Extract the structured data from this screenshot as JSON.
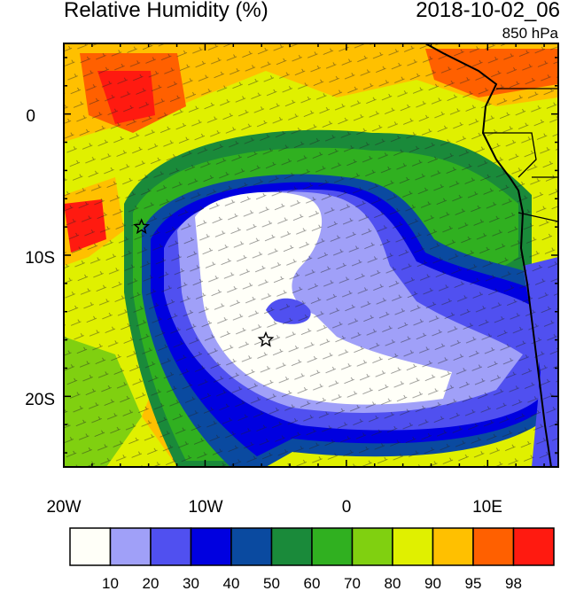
{
  "title": "Relative Humidity (%)",
  "datetime": "2018-10-02_06",
  "level": "850 hPa",
  "x_ticks": [
    "20W",
    "10W",
    "0",
    "10E"
  ],
  "y_ticks": [
    "0",
    "10S",
    "20S"
  ],
  "colorbar": {
    "labels": [
      "10",
      "20",
      "30",
      "40",
      "50",
      "60",
      "70",
      "80",
      "90",
      "95",
      "98"
    ],
    "colors": [
      "#fffff8",
      "#a0a0f8",
      "#5050f0",
      "#0000e0",
      "#0a4aa0",
      "#1a8a3a",
      "#30b020",
      "#80d010",
      "#e0f000",
      "#ffc000",
      "#ff6000",
      "#ff1a10"
    ]
  },
  "markers": [
    {
      "name": "star-marker-west",
      "lon": -14.5,
      "lat": -8
    },
    {
      "name": "star-marker-center",
      "lon": -5.7,
      "lat": -16
    }
  ]
}
